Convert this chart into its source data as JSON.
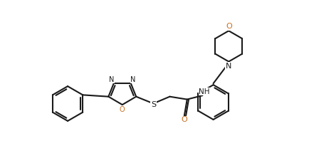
{
  "background_color": "#ffffff",
  "line_color": "#1a1a1a",
  "N_color": "#1a1a1a",
  "O_color": "#c87020",
  "S_color": "#1a1a1a",
  "line_width": 1.5,
  "fig_width": 4.34,
  "fig_height": 2.36,
  "dpi": 100,
  "xlim": [
    -0.3,
    8.7
  ],
  "ylim": [
    -1.8,
    4.2
  ]
}
